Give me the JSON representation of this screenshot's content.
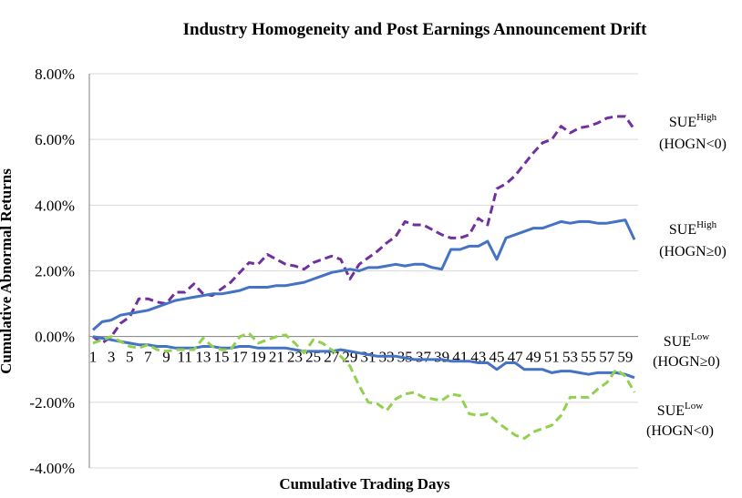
{
  "chart_data": {
    "type": "line",
    "title": "Industry Homogeneity and Post Earnings Announcement Drift",
    "xlabel": "Cumulative Trading Days",
    "ylabel": "Cumulative Abnormal Returns",
    "ylim": [
      -0.04,
      0.08
    ],
    "yticks": [
      {
        "value": 0.08,
        "label": "8.00%"
      },
      {
        "value": 0.06,
        "label": "6.00%"
      },
      {
        "value": 0.04,
        "label": "4.00%"
      },
      {
        "value": 0.02,
        "label": "2.00%"
      },
      {
        "value": 0.0,
        "label": "0.00%"
      },
      {
        "value": -0.02,
        "label": "-2.00%"
      },
      {
        "value": -0.04,
        "label": "-4.00%"
      }
    ],
    "x": [
      1,
      2,
      3,
      4,
      5,
      6,
      7,
      8,
      9,
      10,
      11,
      12,
      13,
      14,
      15,
      16,
      17,
      18,
      19,
      20,
      21,
      22,
      23,
      24,
      25,
      26,
      27,
      28,
      29,
      30,
      31,
      32,
      33,
      34,
      35,
      36,
      37,
      38,
      39,
      40,
      41,
      42,
      43,
      44,
      45,
      46,
      47,
      48,
      49,
      50,
      51,
      52,
      53,
      54,
      55,
      56,
      57,
      58,
      59,
      60
    ],
    "xticks": [
      "1",
      "3",
      "5",
      "7",
      "9",
      "11",
      "13",
      "15",
      "17",
      "19",
      "21",
      "23",
      "25",
      "27",
      "29",
      "31",
      "33",
      "35",
      "37",
      "39",
      "41",
      "43",
      "45",
      "47",
      "49",
      "51",
      "53",
      "55",
      "57",
      "59"
    ],
    "grid": true,
    "legend": "none",
    "series": [
      {
        "name_main": "SUE",
        "name_sup": "High",
        "name_sub": "(HOGN<0)",
        "color": "#7030a0",
        "style": "dashed",
        "values": [
          0.0,
          -0.002,
          0.0,
          0.004,
          0.006,
          0.0115,
          0.0115,
          0.0105,
          0.01,
          0.0135,
          0.0135,
          0.016,
          0.013,
          0.0125,
          0.0145,
          0.0165,
          0.0195,
          0.0225,
          0.022,
          0.025,
          0.0235,
          0.022,
          0.0215,
          0.0205,
          0.0225,
          0.0235,
          0.0245,
          0.0235,
          0.0175,
          0.022,
          0.024,
          0.026,
          0.0285,
          0.0305,
          0.035,
          0.034,
          0.034,
          0.0325,
          0.031,
          0.03,
          0.03,
          0.031,
          0.036,
          0.034,
          0.045,
          0.0465,
          0.049,
          0.0525,
          0.056,
          0.059,
          0.06,
          0.064,
          0.062,
          0.0635,
          0.064,
          0.065,
          0.0665,
          0.067,
          0.067,
          0.063
        ]
      },
      {
        "name_main": "SUE",
        "name_sup": "High",
        "name_sub": "(HOGN≥0)",
        "color": "#4472c4",
        "style": "solid",
        "values": [
          0.002,
          0.0045,
          0.005,
          0.0065,
          0.007,
          0.0075,
          0.008,
          0.009,
          0.01,
          0.011,
          0.0115,
          0.012,
          0.0125,
          0.013,
          0.013,
          0.0135,
          0.014,
          0.015,
          0.015,
          0.015,
          0.0155,
          0.0155,
          0.016,
          0.0165,
          0.0175,
          0.0185,
          0.0195,
          0.02,
          0.0205,
          0.02,
          0.021,
          0.021,
          0.0215,
          0.022,
          0.0215,
          0.022,
          0.022,
          0.021,
          0.0205,
          0.0265,
          0.0265,
          0.0275,
          0.0275,
          0.029,
          0.0235,
          0.03,
          0.031,
          0.032,
          0.033,
          0.033,
          0.034,
          0.035,
          0.0345,
          0.035,
          0.035,
          0.0345,
          0.0345,
          0.035,
          0.0355,
          0.0295
        ]
      },
      {
        "name_main": "SUE",
        "name_sup": "Low",
        "name_sub": "(HOGN≥0)",
        "color": "#4472c4",
        "style": "solid",
        "values": [
          0.0,
          -0.0005,
          -0.001,
          -0.0015,
          -0.002,
          -0.0025,
          -0.0025,
          -0.003,
          -0.003,
          -0.0035,
          -0.0035,
          -0.0035,
          -0.003,
          -0.003,
          -0.0035,
          -0.0035,
          -0.003,
          -0.003,
          -0.0035,
          -0.0035,
          -0.0035,
          -0.0035,
          -0.004,
          -0.0045,
          -0.0045,
          -0.0045,
          -0.0045,
          -0.004,
          -0.0045,
          -0.005,
          -0.0055,
          -0.006,
          -0.006,
          -0.006,
          -0.0065,
          -0.007,
          -0.007,
          -0.007,
          -0.007,
          -0.0075,
          -0.0075,
          -0.0075,
          -0.008,
          -0.008,
          -0.01,
          -0.008,
          -0.008,
          -0.01,
          -0.01,
          -0.01,
          -0.011,
          -0.0105,
          -0.0105,
          -0.011,
          -0.0115,
          -0.011,
          -0.011,
          -0.011,
          -0.0115,
          -0.0125
        ]
      },
      {
        "name_main": "SUE",
        "name_sup": "Low",
        "name_sub": "(HOGN<0)",
        "color": "#92d050",
        "style": "dashed",
        "values": [
          -0.002,
          -0.001,
          0.0,
          -0.0015,
          -0.003,
          -0.0035,
          -0.0025,
          -0.004,
          -0.0045,
          -0.004,
          -0.004,
          -0.004,
          -0.0005,
          -0.003,
          -0.004,
          -0.004,
          0.0,
          0.001,
          -0.002,
          -0.001,
          0.0,
          0.0005,
          -0.002,
          -0.005,
          -0.001,
          -0.002,
          -0.004,
          -0.006,
          -0.009,
          -0.015,
          -0.02,
          -0.0205,
          -0.0225,
          -0.019,
          -0.0175,
          -0.017,
          -0.0185,
          -0.019,
          -0.0195,
          -0.0175,
          -0.018,
          -0.0235,
          -0.024,
          -0.0235,
          -0.026,
          -0.028,
          -0.03,
          -0.031,
          -0.029,
          -0.028,
          -0.027,
          -0.024,
          -0.0185,
          -0.0185,
          -0.0185,
          -0.016,
          -0.014,
          -0.01,
          -0.012,
          -0.017
        ]
      }
    ]
  }
}
